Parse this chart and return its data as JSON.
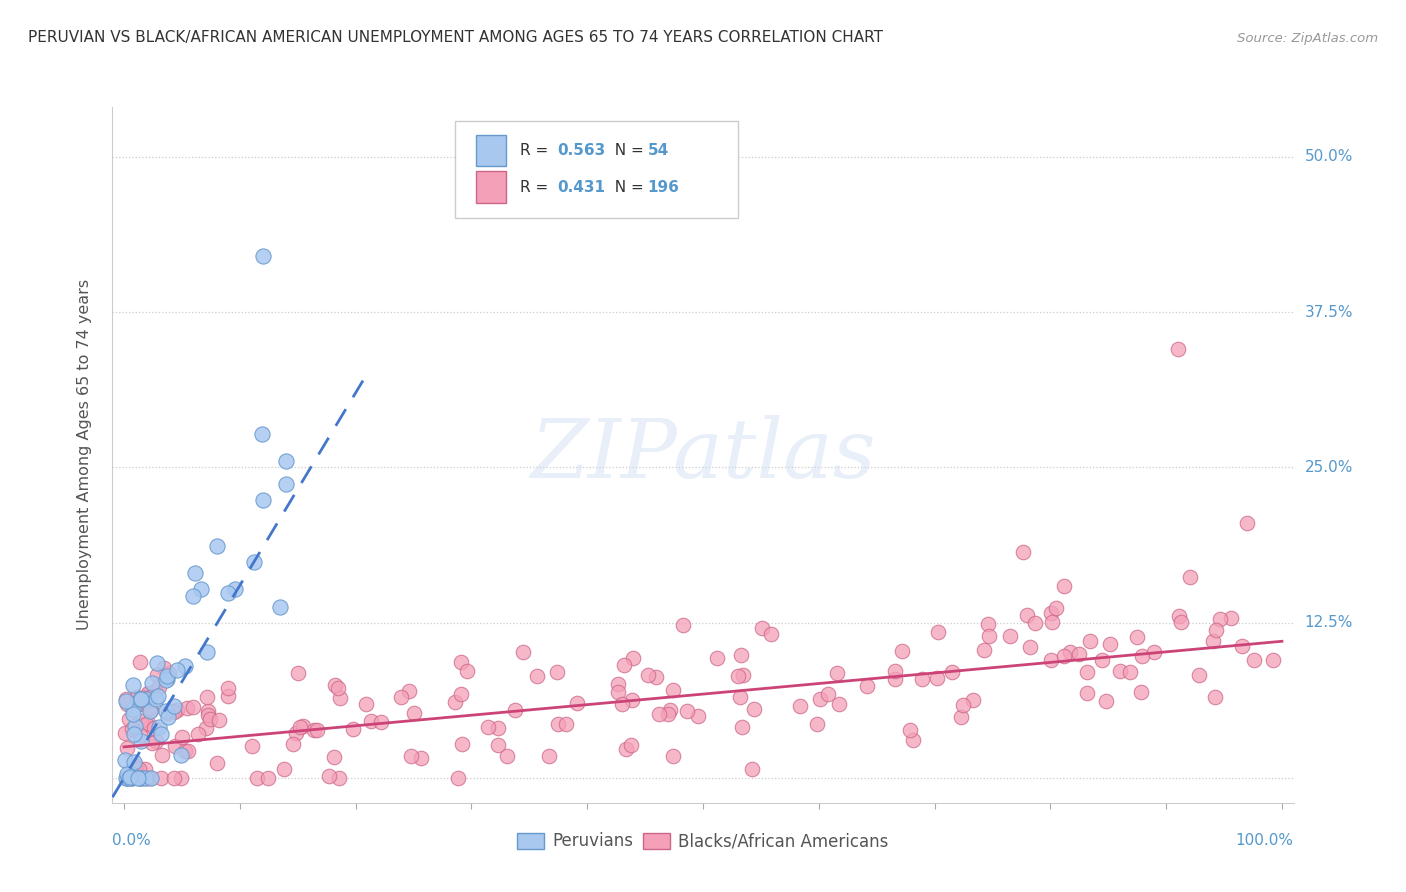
{
  "title": "PERUVIAN VS BLACK/AFRICAN AMERICAN UNEMPLOYMENT AMONG AGES 65 TO 74 YEARS CORRELATION CHART",
  "source": "Source: ZipAtlas.com",
  "ylabel": "Unemployment Among Ages 65 to 74 years",
  "yticks": [
    0.0,
    0.125,
    0.25,
    0.375,
    0.5
  ],
  "ytick_labels_left": [
    "",
    "12.5%",
    "25.0%",
    "37.5%",
    "50.0%"
  ],
  "ytick_labels_right": [
    "",
    "12.5%",
    "25.0%",
    "37.5%",
    "50.0%"
  ],
  "xticks": [
    0.0,
    0.1,
    0.2,
    0.3,
    0.4,
    0.5,
    0.6,
    0.7,
    0.8,
    0.9,
    1.0
  ],
  "peruvian_color": "#a8c8f0",
  "peruvian_edge": "#6699cc",
  "black_color": "#f4a0b8",
  "black_edge": "#cc6688",
  "trend_peruvian_color": "#4477cc",
  "trend_black_color": "#cc4477",
  "legend_R_peruvian": "0.563",
  "legend_N_peruvian": "54",
  "legend_R_black": "0.431",
  "legend_N_black": "196",
  "watermark": "ZIPatlas",
  "background_color": "#ffffff",
  "grid_color": "#cccccc",
  "title_color": "#333333",
  "axis_label_color": "#5599cc",
  "peruvian_n": 54,
  "black_n": 196
}
